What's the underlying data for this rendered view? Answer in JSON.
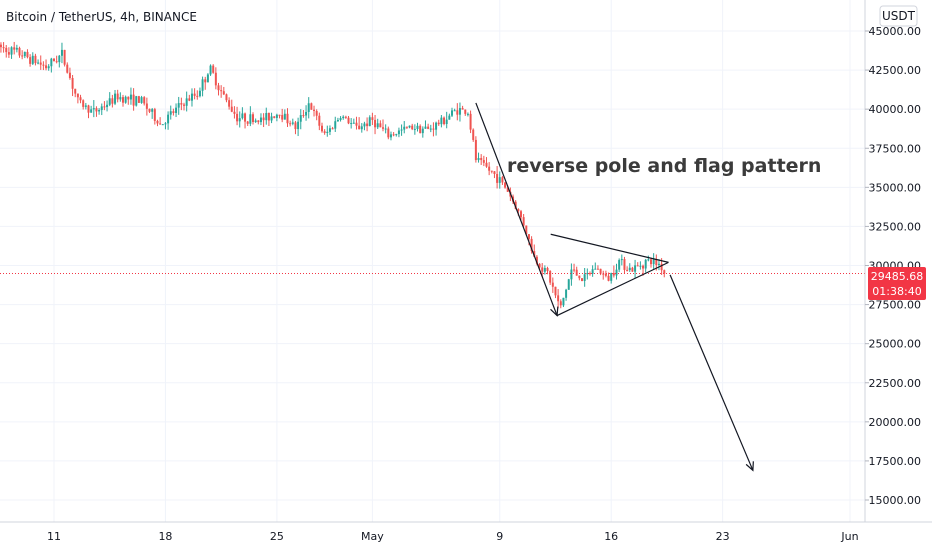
{
  "header": {
    "symbol": "Bitcoin / TetherUS, 4h, BINANCE",
    "currency": "USDT"
  },
  "annotation": "reverse pole and flag pattern",
  "price_badge": {
    "price": "29485.68",
    "countdown": "01:38:40",
    "color": "#f23645"
  },
  "colors": {
    "up": "#26a69a",
    "down": "#ef5350",
    "grid": "#f0f3fa",
    "axis_text": "#131722"
  },
  "chart_data": {
    "type": "candlestick",
    "ylim": [
      14000,
      46500
    ],
    "y_ticks": [
      {
        "value": 45000,
        "label": "45000.00"
      },
      {
        "value": 42500,
        "label": "42500.00"
      },
      {
        "value": 40000,
        "label": "40000.00"
      },
      {
        "value": 37500,
        "label": "37500.00"
      },
      {
        "value": 35000,
        "label": "35000.00"
      },
      {
        "value": 32500,
        "label": "32500.00"
      },
      {
        "value": 30000,
        "label": "30000.00"
      },
      {
        "value": 27500,
        "label": "27500.00"
      },
      {
        "value": 25000,
        "label": "25000.00"
      },
      {
        "value": 22500,
        "label": "22500.00"
      },
      {
        "value": 20000,
        "label": "20000.00"
      },
      {
        "value": 17500,
        "label": "17500.00"
      },
      {
        "value": 15000,
        "label": "15000.00"
      }
    ],
    "x_ticks": [
      {
        "day": 11,
        "label": "11"
      },
      {
        "day": 18,
        "label": "18"
      },
      {
        "day": 25,
        "label": "25"
      },
      {
        "day": 31,
        "label": "May"
      },
      {
        "day": 39,
        "label": "9"
      },
      {
        "day": 46,
        "label": "16"
      },
      {
        "day": 53,
        "label": "23"
      },
      {
        "day": 61,
        "label": "Jun"
      }
    ],
    "last_price": 29485.68,
    "anchors": [
      [
        7.5,
        44000
      ],
      [
        9,
        43500
      ],
      [
        10.5,
        42700
      ],
      [
        11.5,
        43500
      ],
      [
        12.5,
        40500
      ],
      [
        13.5,
        39800
      ],
      [
        15,
        40800
      ],
      [
        16.5,
        40500
      ],
      [
        17.7,
        39000
      ],
      [
        19,
        40300
      ],
      [
        20,
        41000
      ],
      [
        20.8,
        42600
      ],
      [
        21.6,
        40900
      ],
      [
        22.5,
        39500
      ],
      [
        24,
        39300
      ],
      [
        25.2,
        39800
      ],
      [
        26.2,
        38800
      ],
      [
        27,
        40400
      ],
      [
        28,
        38300
      ],
      [
        29,
        39600
      ],
      [
        30,
        38800
      ],
      [
        31,
        39300
      ],
      [
        32,
        38300
      ],
      [
        33.5,
        38900
      ],
      [
        34.5,
        38700
      ],
      [
        35.5,
        39300
      ],
      [
        36.3,
        40000
      ],
      [
        37,
        39800
      ],
      [
        37.5,
        36800
      ],
      [
        38.8,
        35700
      ],
      [
        39.5,
        34800
      ],
      [
        40.5,
        32700
      ],
      [
        41.2,
        30400
      ],
      [
        42,
        29500
      ],
      [
        42.8,
        27200
      ],
      [
        43.5,
        29700
      ],
      [
        44.3,
        29100
      ],
      [
        45,
        29900
      ],
      [
        45.8,
        29100
      ],
      [
        46.5,
        30300
      ],
      [
        47.3,
        29700
      ],
      [
        48.2,
        30300
      ],
      [
        49,
        30100
      ],
      [
        49.4,
        29600
      ]
    ],
    "pole_flag_lines": [
      {
        "from": [
          37.5,
          40400
        ],
        "to": [
          42.6,
          26800
        ]
      },
      {
        "from": [
          42.6,
          26800
        ],
        "to": [
          49.6,
          30200
        ]
      },
      {
        "from": [
          42.2,
          32000
        ],
        "to": [
          49.6,
          30200
        ]
      }
    ],
    "projection_arrow": {
      "from": [
        49.7,
        29400
      ],
      "to": [
        54.9,
        16900
      ]
    },
    "last_price_line": true,
    "grid": true,
    "legend": "none"
  }
}
